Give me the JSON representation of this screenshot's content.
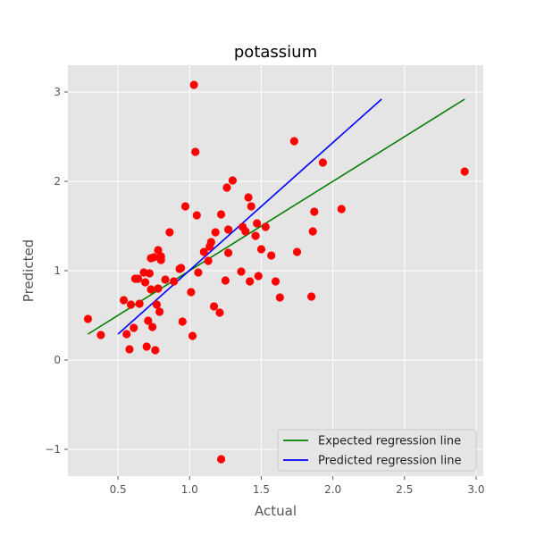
{
  "chart_data": {
    "type": "scatter",
    "title": "potassium",
    "xlabel": "Actual",
    "ylabel": "Predicted",
    "xlim": [
      0.15,
      3.05
    ],
    "ylim": [
      -1.3,
      3.3
    ],
    "xticks": [
      0.5,
      1.0,
      1.5,
      2.0,
      2.5,
      3.0
    ],
    "xtick_labels": [
      "0.5",
      "1.0",
      "1.5",
      "2.0",
      "2.5",
      "3.0"
    ],
    "yticks": [
      -1,
      0,
      1,
      2,
      3
    ],
    "ytick_labels": [
      "−1",
      "0",
      "1",
      "2",
      "3"
    ],
    "grid": true,
    "legend_position": "bottom-right",
    "points_color": "#ff0000",
    "points": [
      [
        0.29,
        0.46
      ],
      [
        0.38,
        0.28
      ],
      [
        0.54,
        0.67
      ],
      [
        0.56,
        0.29
      ],
      [
        0.58,
        0.12
      ],
      [
        0.59,
        0.62
      ],
      [
        0.61,
        0.36
      ],
      [
        0.62,
        0.91
      ],
      [
        0.64,
        0.91
      ],
      [
        0.65,
        0.63
      ],
      [
        0.68,
        0.98
      ],
      [
        0.69,
        0.87
      ],
      [
        0.7,
        0.15
      ],
      [
        0.71,
        0.44
      ],
      [
        0.72,
        0.97
      ],
      [
        0.73,
        0.79
      ],
      [
        0.73,
        1.14
      ],
      [
        0.74,
        0.37
      ],
      [
        0.75,
        1.15
      ],
      [
        0.76,
        0.11
      ],
      [
        0.77,
        0.62
      ],
      [
        0.78,
        0.8
      ],
      [
        0.78,
        1.23
      ],
      [
        0.79,
        0.54
      ],
      [
        0.8,
        1.16
      ],
      [
        0.8,
        1.12
      ],
      [
        0.83,
        0.9
      ],
      [
        0.86,
        1.43
      ],
      [
        0.89,
        0.88
      ],
      [
        0.93,
        1.02
      ],
      [
        0.94,
        1.03
      ],
      [
        0.95,
        0.43
      ],
      [
        0.97,
        1.72
      ],
      [
        1.01,
        0.76
      ],
      [
        1.02,
        0.27
      ],
      [
        1.03,
        3.08
      ],
      [
        1.04,
        2.33
      ],
      [
        1.05,
        1.62
      ],
      [
        1.06,
        0.98
      ],
      [
        1.1,
        1.21
      ],
      [
        1.13,
        1.11
      ],
      [
        1.14,
        1.27
      ],
      [
        1.15,
        1.32
      ],
      [
        1.17,
        0.6
      ],
      [
        1.18,
        1.43
      ],
      [
        1.21,
        0.53
      ],
      [
        1.22,
        1.63
      ],
      [
        1.22,
        -1.11
      ],
      [
        1.25,
        0.89
      ],
      [
        1.26,
        1.93
      ],
      [
        1.27,
        1.2
      ],
      [
        1.27,
        1.46
      ],
      [
        1.3,
        2.01
      ],
      [
        1.36,
        0.99
      ],
      [
        1.37,
        1.49
      ],
      [
        1.39,
        1.44
      ],
      [
        1.41,
        1.82
      ],
      [
        1.42,
        0.88
      ],
      [
        1.43,
        1.72
      ],
      [
        1.46,
        1.39
      ],
      [
        1.47,
        1.53
      ],
      [
        1.48,
        0.94
      ],
      [
        1.5,
        1.24
      ],
      [
        1.53,
        1.49
      ],
      [
        1.57,
        1.17
      ],
      [
        1.6,
        0.88
      ],
      [
        1.63,
        0.7
      ],
      [
        1.73,
        2.45
      ],
      [
        1.75,
        1.21
      ],
      [
        1.85,
        0.71
      ],
      [
        1.86,
        1.44
      ],
      [
        1.87,
        1.66
      ],
      [
        1.93,
        2.21
      ],
      [
        2.06,
        1.69
      ],
      [
        2.92,
        2.11
      ]
    ],
    "series": [
      {
        "name": "Expected regression line",
        "color": "#008000",
        "x": [
          0.29,
          2.92
        ],
        "y": [
          0.29,
          2.92
        ]
      },
      {
        "name": "Predicted regression line",
        "color": "#0000ff",
        "x": [
          0.5,
          2.34
        ],
        "y": [
          0.29,
          2.92
        ]
      }
    ]
  }
}
